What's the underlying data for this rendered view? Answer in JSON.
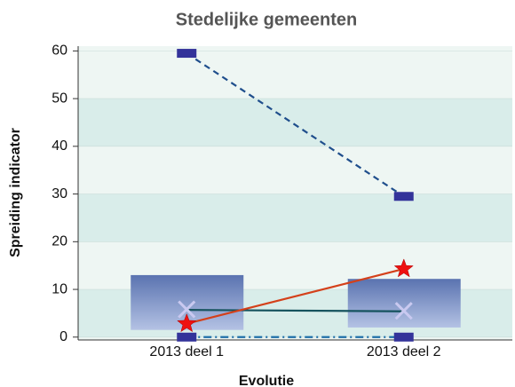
{
  "chart_data": {
    "type": "range-line",
    "title": "Stedelijke gemeenten",
    "x_label": "Evolutie",
    "y_label": "Spreiding indicator",
    "categories": [
      "2013 deel 1",
      "2013 deel 2"
    ],
    "ylim": [
      -0.6,
      61
    ],
    "yticks": [
      0,
      10,
      20,
      30,
      40,
      50,
      60
    ],
    "grid": true,
    "bands": [
      "#eef6f3",
      "#d9edea"
    ],
    "series": [
      {
        "kind": "box",
        "color": "#5d77b3",
        "low": [
          1.5,
          2
        ],
        "high": [
          13,
          12.2
        ]
      },
      {
        "kind": "line",
        "marker": "dash",
        "line_style": "dashed",
        "color": "#1f4e8c",
        "marker_color": "#33339a",
        "values": [
          59.5,
          29.5
        ]
      },
      {
        "kind": "line",
        "marker": "dash",
        "line_style": "dashdot",
        "color": "#1f6fa8",
        "marker_color": "#33339a",
        "values": [
          0,
          0
        ]
      },
      {
        "kind": "line",
        "marker": "none",
        "line_style": "solid",
        "color": "#16535e",
        "values": [
          5.7,
          5.4
        ]
      },
      {
        "kind": "marker",
        "marker": "x",
        "color": "#c9c9f0",
        "values": [
          5.8,
          5.5
        ]
      },
      {
        "kind": "line",
        "marker": "star",
        "line_style": "solid",
        "color": "#d4401a",
        "marker_color": "#ee1111",
        "values": [
          2.8,
          14.3
        ]
      }
    ]
  }
}
